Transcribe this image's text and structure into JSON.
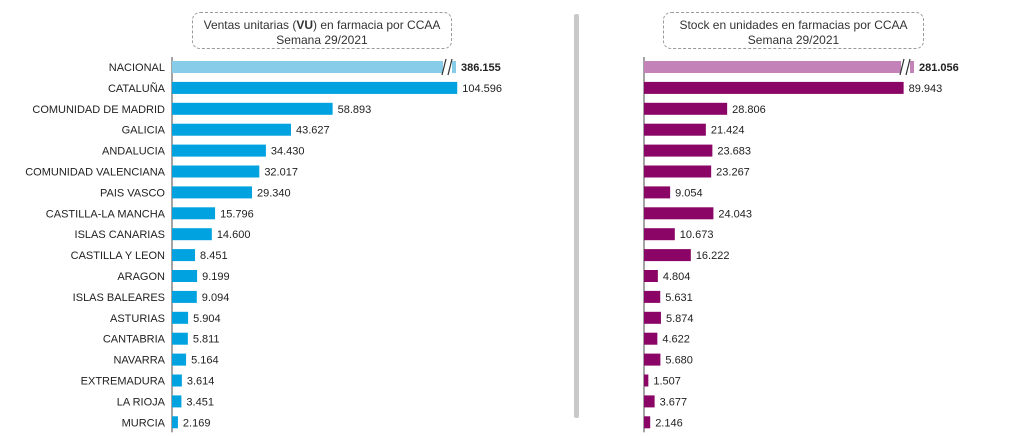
{
  "chart_data": [
    {
      "type": "bar",
      "orientation": "horizontal",
      "title_parts": [
        "Ventas unitarias (",
        "VU",
        ") en farmacia por CCAA"
      ],
      "subtitle": "Semana 29/2021",
      "categories": [
        "NACIONAL",
        "CATALUÑA",
        "COMUNIDAD DE MADRID",
        "GALICIA",
        "ANDALUCIA",
        "COMUNIDAD VALENCIANA",
        "PAIS VASCO",
        "CASTILLA-LA MANCHA",
        "ISLAS CANARIAS",
        "CASTILLA Y LEON",
        "ARAGON",
        "ISLAS BALEARES",
        "ASTURIAS",
        "CANTABRIA",
        "NAVARRA",
        "EXTREMADURA",
        "LA RIOJA",
        "MURCIA"
      ],
      "values": [
        386155,
        104596,
        58893,
        43627,
        34430,
        32017,
        29340,
        15796,
        14600,
        8451,
        9199,
        9094,
        5904,
        5811,
        5164,
        3614,
        3451,
        2169
      ],
      "value_labels": [
        "386.155",
        "104.596",
        "58.893",
        "43.627",
        "34.430",
        "32.017",
        "29.340",
        "15.796",
        "14.600",
        "8.451",
        "9.199",
        "9.094",
        "5.904",
        "5.811",
        "5.164",
        "3.614",
        "3.451",
        "2.169"
      ],
      "highlight_color": "#87cdea",
      "bar_color": "#00a2df",
      "axis_break_on": "NACIONAL",
      "xlim": [
        0,
        110000
      ]
    },
    {
      "type": "bar",
      "orientation": "horizontal",
      "title_parts": [
        "Stock en unidades en farmacias por CCAA"
      ],
      "subtitle": "Semana 29/2021",
      "categories": [
        "NACIONAL",
        "CATALUÑA",
        "COMUNIDAD DE MADRID",
        "GALICIA",
        "ANDALUCIA",
        "COMUNIDAD VALENCIANA",
        "PAIS VASCO",
        "CASTILLA-LA MANCHA",
        "ISLAS CANARIAS",
        "CASTILLA Y LEON",
        "ARAGON",
        "ISLAS BALEARES",
        "ASTURIAS",
        "CANTABRIA",
        "NAVARRA",
        "EXTREMADURA",
        "LA RIOJA",
        "MURCIA"
      ],
      "values": [
        281056,
        89943,
        28806,
        21424,
        23683,
        23267,
        9054,
        24043,
        10673,
        16222,
        4804,
        5631,
        5874,
        4622,
        5680,
        1507,
        3677,
        2146
      ],
      "value_labels": [
        "281.056",
        "89.943",
        "28.806",
        "21.424",
        "23.683",
        "23.267",
        "9.054",
        "24.043",
        "10.673",
        "16.222",
        "4.804",
        "5.631",
        "5.874",
        "4.622",
        "5.680",
        "1.507",
        "3.677",
        "2.146"
      ],
      "highlight_color": "#c483b8",
      "bar_color": "#8a0565",
      "axis_break_on": "NACIONAL",
      "xlim": [
        0,
        97000
      ]
    }
  ]
}
